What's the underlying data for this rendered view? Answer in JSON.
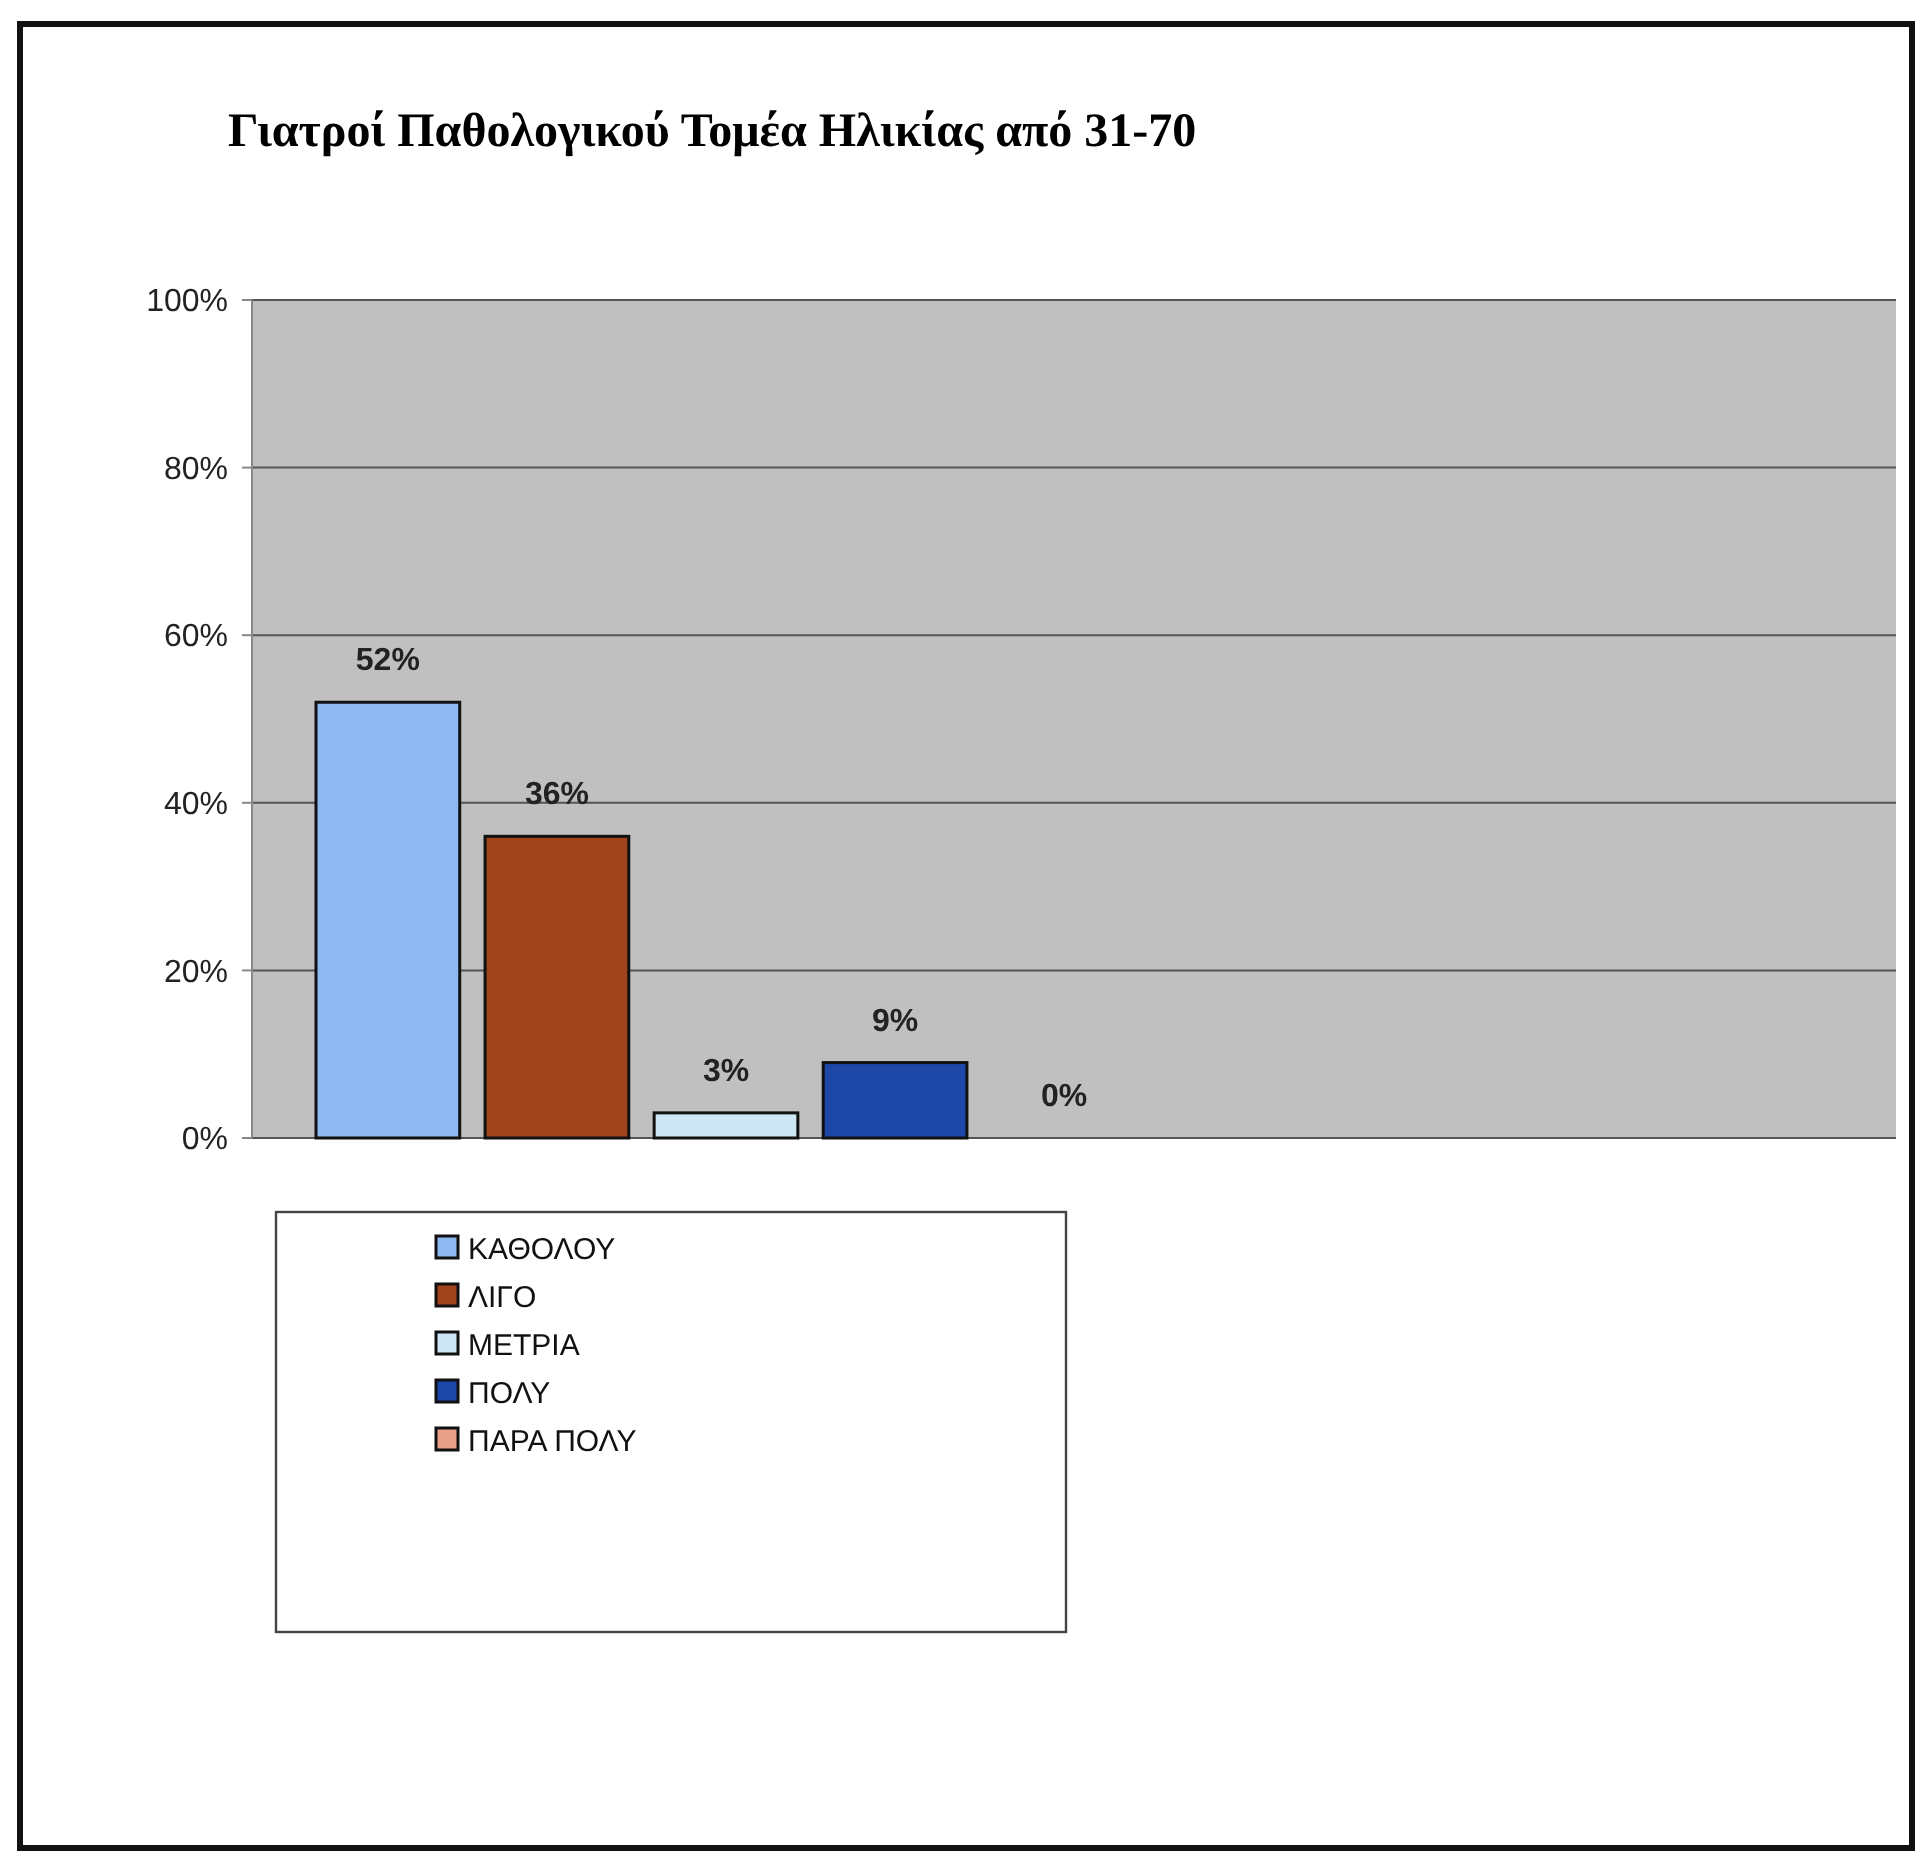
{
  "chart_data": {
    "type": "bar",
    "title": "Γιατροί Παθολογικού Τομέα Ηλικίας από 31-70",
    "categories": [
      null
    ],
    "series": [
      {
        "name": "ΚΑΘΟΛΟΥ",
        "color": "#8db8f0",
        "values": [
          52
        ],
        "value_labels": [
          "52%"
        ]
      },
      {
        "name": "ΛΙΓΟ",
        "color": "#a0441c",
        "values": [
          36
        ],
        "value_labels": [
          "36%"
        ]
      },
      {
        "name": "ΜΕΤΡΙΑ",
        "color": "#cce6f4",
        "values": [
          3
        ],
        "value_labels": [
          "3%"
        ]
      },
      {
        "name": "ΠΟΛΥ",
        "color": "#1e48a8",
        "values": [
          9
        ],
        "value_labels": [
          "9%"
        ]
      },
      {
        "name": "ΠΑΡΑ ΠΟΛΥ",
        "color": "#e8a088",
        "values": [
          0
        ],
        "value_labels": [
          "0%"
        ]
      }
    ],
    "ylim": [
      0,
      100
    ],
    "yticks": [
      {
        "value": 0,
        "label": "0%"
      },
      {
        "value": 20,
        "label": "20%"
      },
      {
        "value": 40,
        "label": "40%"
      },
      {
        "value": 60,
        "label": "60%"
      },
      {
        "value": 80,
        "label": "80%"
      },
      {
        "value": 100,
        "label": "100%"
      }
    ],
    "grid": "y",
    "legend": "bottom left"
  }
}
